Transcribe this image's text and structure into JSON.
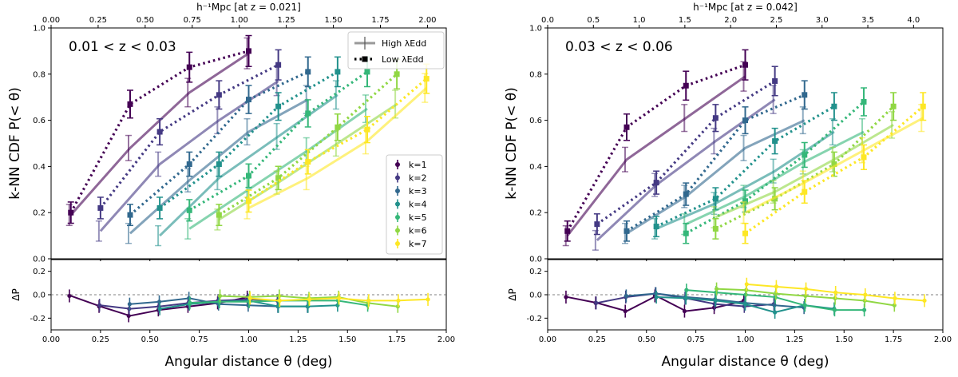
{
  "chart_data": [
    {
      "type": "line",
      "panel": "left",
      "annotation": "0.01 < z < 0.03",
      "top_axis_label": "h⁻¹Mpc [at z = 0.021]",
      "top_ticks": [
        "0.00",
        "0.25",
        "0.50",
        "0.75",
        "1.00",
        "1.25",
        "1.50",
        "1.75",
        "2.00"
      ],
      "top_xlim": [
        0,
        2.1
      ],
      "xlabel": "Angular distance θ (deg)",
      "ylabel": "k-NN CDF P(< θ)",
      "ylabel_bottom": "ΔP",
      "xlim": [
        0,
        2.0
      ],
      "ylim": [
        0,
        1.0
      ],
      "ylim_bottom": [
        -0.3,
        0.3
      ],
      "x_ticks": [
        "0.00",
        "0.25",
        "0.50",
        "0.75",
        "1.00",
        "1.25",
        "1.50",
        "1.75",
        "2.00"
      ],
      "y_ticks": [
        "0.0",
        "0.2",
        "0.4",
        "0.6",
        "0.8",
        "1.0"
      ],
      "y_ticks_bottom": [
        "-0.2",
        "0.0",
        "0.2"
      ],
      "legend_style": {
        "high": "High λEdd",
        "low": "Low λEdd",
        "position": "top-right"
      },
      "legend_k_position": "right",
      "series": [
        {
          "name": "k=1",
          "color": "#440154",
          "high": {
            "x": [
              0.1,
              0.4,
              0.7,
              1.0
            ],
            "y": [
              0.19,
              0.48,
              0.72,
              0.89
            ]
          },
          "low": {
            "x": [
              0.1,
              0.4,
              0.7,
              1.0
            ],
            "y": [
              0.2,
              0.67,
              0.83,
              0.9
            ]
          },
          "delta": {
            "x": [
              0.1,
              0.25,
              0.4,
              0.55,
              0.7,
              0.85,
              1.0
            ],
            "y": [
              -0.01,
              -0.1,
              -0.18,
              -0.13,
              -0.1,
              -0.07,
              -0.02
            ]
          }
        },
        {
          "name": "k=2",
          "color": "#443983",
          "high": {
            "x": [
              0.25,
              0.55,
              0.85,
              1.15
            ],
            "y": [
              0.12,
              0.41,
              0.6,
              0.77
            ]
          },
          "low": {
            "x": [
              0.25,
              0.55,
              0.85,
              1.15
            ],
            "y": [
              0.22,
              0.55,
              0.71,
              0.84
            ]
          },
          "delta": {
            "x": [
              0.25,
              0.4,
              0.55,
              0.7,
              0.85,
              1.0,
              1.15
            ],
            "y": [
              -0.09,
              -0.12,
              -0.1,
              -0.07,
              -0.05,
              -0.04,
              -0.05
            ]
          }
        },
        {
          "name": "k=3",
          "color": "#31688e",
          "high": {
            "x": [
              0.4,
              0.7,
              1.0,
              1.3
            ],
            "y": [
              0.11,
              0.34,
              0.55,
              0.69
            ]
          },
          "low": {
            "x": [
              0.4,
              0.7,
              1.0,
              1.3
            ],
            "y": [
              0.19,
              0.41,
              0.69,
              0.81
            ]
          },
          "delta": {
            "x": [
              0.4,
              0.55,
              0.7,
              0.85,
              1.0,
              1.15,
              1.3
            ],
            "y": [
              -0.08,
              -0.06,
              -0.03,
              -0.08,
              -0.09,
              -0.1,
              -0.1
            ]
          }
        },
        {
          "name": "k=4",
          "color": "#21918c",
          "high": {
            "x": [
              0.55,
              0.85,
              1.15,
              1.45
            ],
            "y": [
              0.1,
              0.35,
              0.53,
              0.71
            ]
          },
          "low": {
            "x": [
              0.55,
              0.85,
              1.15,
              1.45
            ],
            "y": [
              0.22,
              0.41,
              0.66,
              0.81
            ]
          },
          "delta": {
            "x": [
              0.55,
              0.7,
              0.85,
              1.0,
              1.15,
              1.3,
              1.45
            ],
            "y": [
              -0.12,
              -0.08,
              -0.06,
              -0.05,
              -0.1,
              -0.1,
              -0.09
            ]
          }
        },
        {
          "name": "k=5",
          "color": "#35b779",
          "high": {
            "x": [
              0.7,
              1.0,
              1.3,
              1.6
            ],
            "y": [
              0.13,
              0.3,
              0.47,
              0.65
            ]
          },
          "low": {
            "x": [
              0.7,
              1.0,
              1.3,
              1.6
            ],
            "y": [
              0.21,
              0.36,
              0.63,
              0.81
            ]
          },
          "delta": {
            "x": [
              0.7,
              0.85,
              1.0,
              1.15,
              1.3,
              1.45,
              1.6
            ],
            "y": [
              -0.07,
              -0.06,
              -0.06,
              -0.05,
              -0.05,
              -0.05,
              -0.09
            ]
          }
        },
        {
          "name": "k=6",
          "color": "#90d743",
          "high": {
            "x": [
              0.85,
              1.15,
              1.45,
              1.75
            ],
            "y": [
              0.17,
              0.33,
              0.5,
              0.67
            ]
          },
          "low": {
            "x": [
              0.85,
              1.15,
              1.45,
              1.75
            ],
            "y": [
              0.19,
              0.35,
              0.57,
              0.8
            ]
          },
          "delta": {
            "x": [
              0.85,
              1.0,
              1.15,
              1.3,
              1.45,
              1.6,
              1.75
            ],
            "y": [
              -0.01,
              -0.02,
              -0.01,
              -0.03,
              -0.02,
              -0.07,
              -0.1
            ]
          }
        },
        {
          "name": "k=7",
          "color": "#fde725",
          "high": {
            "x": [
              1.0,
              1.3,
              1.6,
              1.9
            ],
            "y": [
              0.22,
              0.35,
              0.51,
              0.74
            ]
          },
          "low": {
            "x": [
              1.0,
              1.3,
              1.6,
              1.9
            ],
            "y": [
              0.25,
              0.42,
              0.56,
              0.78
            ]
          },
          "delta": {
            "x": [
              1.0,
              1.15,
              1.3,
              1.45,
              1.6,
              1.75,
              1.9
            ],
            "y": [
              -0.03,
              -0.05,
              -0.04,
              -0.03,
              -0.05,
              -0.05,
              -0.04
            ]
          }
        }
      ]
    },
    {
      "type": "line",
      "panel": "right",
      "annotation": "0.03 < z < 0.06",
      "top_axis_label": "h⁻¹Mpc [at z = 0.042]",
      "top_ticks": [
        "0.0",
        "0.5",
        "1.0",
        "1.5",
        "2.0",
        "2.5",
        "3.0",
        "3.5",
        "4.0"
      ],
      "top_xlim": [
        0,
        4.32
      ],
      "xlabel": "Angular distance θ (deg)",
      "ylabel": "k-NN CDF P(< θ)",
      "ylabel_bottom": "ΔP",
      "xlim": [
        0,
        2.0
      ],
      "ylim": [
        0,
        1.0
      ],
      "ylim_bottom": [
        -0.3,
        0.3
      ],
      "x_ticks": [
        "0.00",
        "0.25",
        "0.50",
        "0.75",
        "1.00",
        "1.25",
        "1.50",
        "1.75",
        "2.00"
      ],
      "y_ticks": [
        "0.0",
        "0.2",
        "0.4",
        "0.6",
        "0.8",
        "1.0"
      ],
      "y_ticks_bottom": [
        "-0.2",
        "0.0",
        "0.2"
      ],
      "series": [
        {
          "name": "k=1",
          "color": "#440154",
          "high": {
            "x": [
              0.1,
              0.4,
              0.7,
              1.0
            ],
            "y": [
              0.1,
              0.43,
              0.61,
              0.79
            ]
          },
          "low": {
            "x": [
              0.1,
              0.4,
              0.7,
              1.0
            ],
            "y": [
              0.12,
              0.57,
              0.75,
              0.84
            ]
          },
          "delta": {
            "x": [
              0.1,
              0.25,
              0.4,
              0.55,
              0.7,
              0.85,
              1.0
            ],
            "y": [
              -0.02,
              -0.07,
              -0.14,
              -0.01,
              -0.14,
              -0.11,
              -0.05
            ]
          }
        },
        {
          "name": "k=2",
          "color": "#443983",
          "high": {
            "x": [
              0.25,
              0.55,
              0.85,
              1.15
            ],
            "y": [
              0.08,
              0.32,
              0.51,
              0.69
            ]
          },
          "low": {
            "x": [
              0.25,
              0.55,
              0.85,
              1.15
            ],
            "y": [
              0.15,
              0.33,
              0.61,
              0.77
            ]
          },
          "delta": {
            "x": [
              0.25,
              0.4,
              0.55,
              0.7,
              0.85,
              1.0,
              1.15
            ],
            "y": [
              -0.07,
              -0.02,
              0.01,
              -0.03,
              -0.08,
              -0.1,
              -0.08
            ]
          }
        },
        {
          "name": "k=3",
          "color": "#31688e",
          "high": {
            "x": [
              0.4,
              0.7,
              1.0,
              1.3
            ],
            "y": [
              0.11,
              0.27,
              0.48,
              0.6
            ]
          },
          "low": {
            "x": [
              0.4,
              0.7,
              1.0,
              1.3
            ],
            "y": [
              0.12,
              0.28,
              0.6,
              0.71
            ]
          },
          "delta": {
            "x": [
              0.4,
              0.55,
              0.7,
              0.85,
              1.0,
              1.15,
              1.3
            ],
            "y": [
              -0.01,
              0.01,
              -0.02,
              -0.04,
              -0.07,
              -0.09,
              -0.11
            ]
          }
        },
        {
          "name": "k=4",
          "color": "#21918c",
          "high": {
            "x": [
              0.55,
              0.85,
              1.15,
              1.45
            ],
            "y": [
              0.13,
              0.24,
              0.38,
              0.55
            ]
          },
          "low": {
            "x": [
              0.55,
              0.85,
              1.15,
              1.45
            ],
            "y": [
              0.14,
              0.26,
              0.51,
              0.66
            ]
          },
          "delta": {
            "x": [
              0.55,
              0.7,
              0.85,
              1.0,
              1.15,
              1.3,
              1.45
            ],
            "y": [
              -0.02,
              -0.03,
              -0.05,
              -0.08,
              -0.15,
              -0.09,
              -0.12
            ]
          }
        },
        {
          "name": "k=5",
          "color": "#35b779",
          "high": {
            "x": [
              0.7,
              1.0,
              1.3,
              1.6
            ],
            "y": [
              0.15,
              0.27,
              0.42,
              0.55
            ]
          },
          "low": {
            "x": [
              0.7,
              1.0,
              1.3,
              1.6
            ],
            "y": [
              0.11,
              0.25,
              0.45,
              0.68
            ]
          },
          "delta": {
            "x": [
              0.7,
              0.85,
              1.0,
              1.15,
              1.3,
              1.45,
              1.6
            ],
            "y": [
              0.04,
              0.02,
              0.0,
              -0.02,
              -0.09,
              -0.13,
              -0.13
            ]
          }
        },
        {
          "name": "k=6",
          "color": "#90d743",
          "high": {
            "x": [
              0.85,
              1.15,
              1.45,
              1.75
            ],
            "y": [
              0.18,
              0.29,
              0.43,
              0.58
            ]
          },
          "low": {
            "x": [
              0.85,
              1.15,
              1.45,
              1.75
            ],
            "y": [
              0.13,
              0.26,
              0.41,
              0.66
            ]
          },
          "delta": {
            "x": [
              0.85,
              1.0,
              1.15,
              1.3,
              1.45,
              1.6,
              1.75
            ],
            "y": [
              0.05,
              0.04,
              0.01,
              -0.01,
              -0.03,
              -0.05,
              -0.09
            ]
          }
        },
        {
          "name": "k=7",
          "color": "#fde725",
          "high": {
            "x": [
              1.0,
              1.3,
              1.6,
              1.9
            ],
            "y": [
              0.2,
              0.33,
              0.47,
              0.61
            ]
          },
          "low": {
            "x": [
              1.0,
              1.3,
              1.6,
              1.9
            ],
            "y": [
              0.11,
              0.29,
              0.44,
              0.66
            ]
          },
          "delta": {
            "x": [
              1.0,
              1.15,
              1.3,
              1.45,
              1.6,
              1.75,
              1.9
            ],
            "y": [
              0.09,
              0.07,
              0.05,
              0.02,
              0.0,
              -0.03,
              -0.05
            ]
          }
        }
      ]
    }
  ]
}
